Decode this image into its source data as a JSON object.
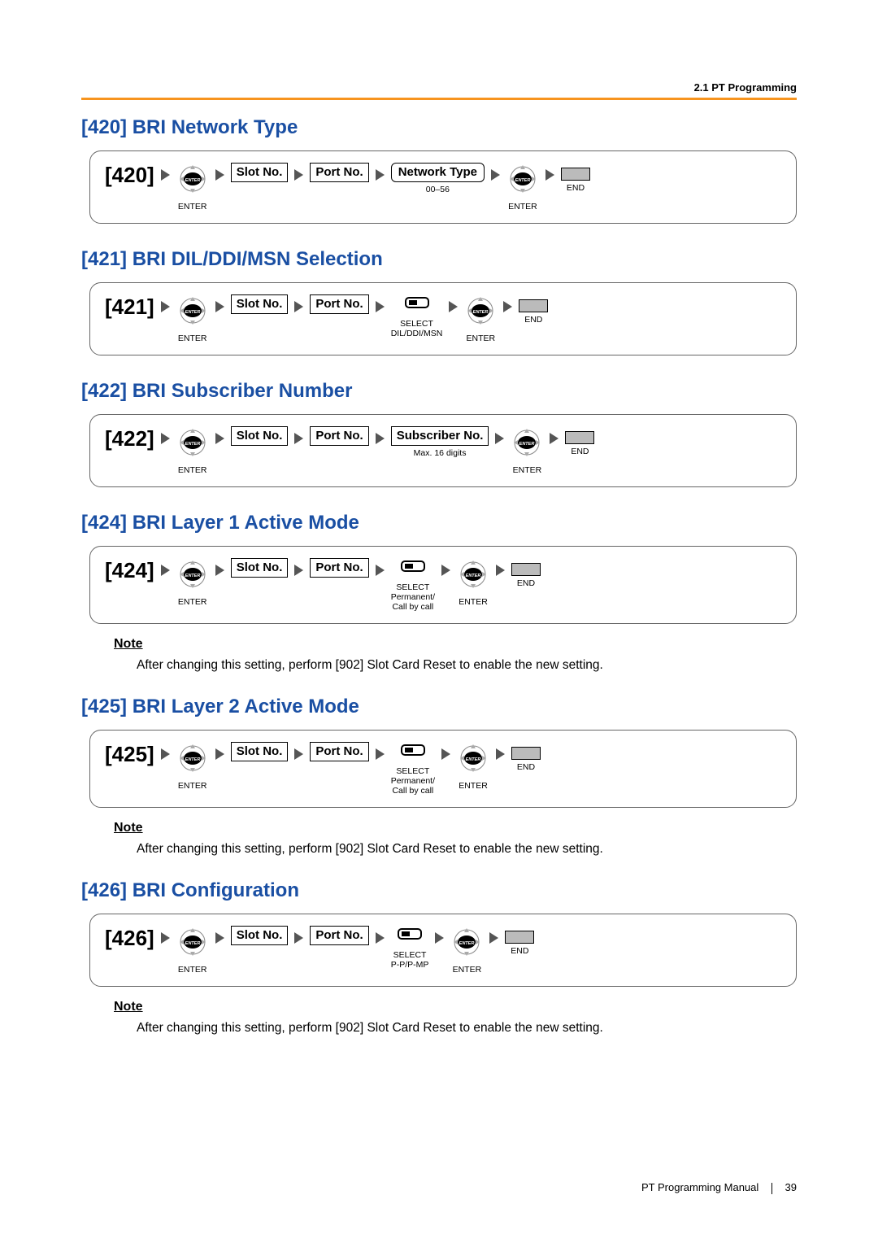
{
  "header": {
    "section_label": "2.1 PT Programming"
  },
  "sections": [
    {
      "title": "[420] BRI Network Type",
      "code": "[420]",
      "steps": [
        {
          "type": "enter",
          "below": "ENTER"
        },
        {
          "type": "boxed",
          "label": "Slot No."
        },
        {
          "type": "boxed",
          "label": "Port No."
        },
        {
          "type": "rbox",
          "label": "Network Type",
          "below": "00–56"
        },
        {
          "type": "enter",
          "below": "ENTER"
        },
        {
          "type": "end",
          "below": "END"
        }
      ]
    },
    {
      "title": "[421] BRI DIL/DDI/MSN Selection",
      "code": "[421]",
      "steps": [
        {
          "type": "enter",
          "below": "ENTER"
        },
        {
          "type": "boxed",
          "label": "Slot No."
        },
        {
          "type": "boxed",
          "label": "Port No."
        },
        {
          "type": "select",
          "below": "SELECT\nDIL/DDI/MSN"
        },
        {
          "type": "enter",
          "below": "ENTER"
        },
        {
          "type": "end",
          "below": "END"
        }
      ]
    },
    {
      "title": "[422] BRI Subscriber Number",
      "code": "[422]",
      "steps": [
        {
          "type": "enter",
          "below": "ENTER"
        },
        {
          "type": "boxed",
          "label": "Slot No."
        },
        {
          "type": "boxed",
          "label": "Port No."
        },
        {
          "type": "boxed",
          "label": "Subscriber No.",
          "below": "Max. 16 digits"
        },
        {
          "type": "enter",
          "below": "ENTER"
        },
        {
          "type": "end",
          "below": "END"
        }
      ]
    },
    {
      "title": "[424] BRI Layer 1 Active Mode",
      "code": "[424]",
      "steps": [
        {
          "type": "enter",
          "below": "ENTER"
        },
        {
          "type": "boxed",
          "label": "Slot No."
        },
        {
          "type": "boxed",
          "label": "Port No."
        },
        {
          "type": "select",
          "below": "SELECT\nPermanent/\nCall by call"
        },
        {
          "type": "enter",
          "below": "ENTER"
        },
        {
          "type": "end",
          "below": "END"
        }
      ],
      "note": "After changing this setting, perform [902] Slot Card Reset to enable the new setting."
    },
    {
      "title": "[425] BRI Layer 2 Active Mode",
      "code": "[425]",
      "steps": [
        {
          "type": "enter",
          "below": "ENTER"
        },
        {
          "type": "boxed",
          "label": "Slot No."
        },
        {
          "type": "boxed",
          "label": "Port No."
        },
        {
          "type": "select",
          "below": "SELECT\nPermanent/\nCall by call"
        },
        {
          "type": "enter",
          "below": "ENTER"
        },
        {
          "type": "end",
          "below": "END"
        }
      ],
      "note": "After changing this setting, perform [902] Slot Card Reset to enable the new setting."
    },
    {
      "title": "[426] BRI Configuration",
      "code": "[426]",
      "steps": [
        {
          "type": "enter",
          "below": "ENTER"
        },
        {
          "type": "boxed",
          "label": "Slot No."
        },
        {
          "type": "boxed",
          "label": "Port No."
        },
        {
          "type": "select",
          "below": "SELECT\nP-P/P-MP"
        },
        {
          "type": "enter",
          "below": "ENTER"
        },
        {
          "type": "end",
          "below": "END"
        }
      ],
      "note": "After changing this setting, perform [902] Slot Card Reset to enable the new setting."
    }
  ],
  "footer": {
    "manual": "PT Programming Manual",
    "page_no": "39"
  },
  "labels": {
    "note": "Note"
  },
  "colors": {
    "title": "#1a4fa3",
    "rule": "#f7941e",
    "arrow": "#555555",
    "endbox_fill": "#bbbbbb"
  }
}
